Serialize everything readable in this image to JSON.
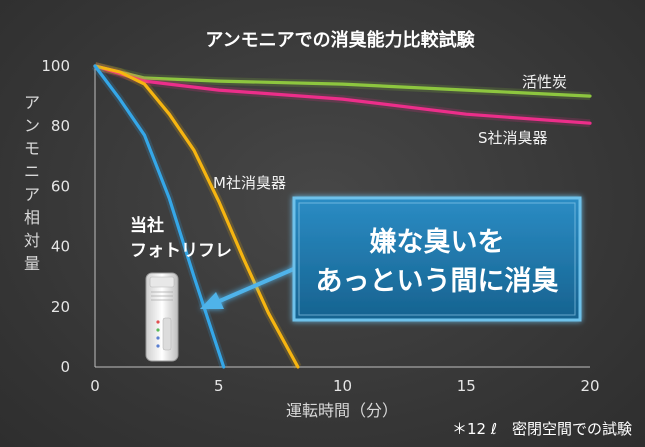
{
  "chart_data": {
    "type": "line",
    "title": "アンモニアでの消臭能力比較試験",
    "xlabel": "運転時間（分）",
    "ylabel": "アンモニア相対量",
    "xlim": [
      0,
      20
    ],
    "ylim": [
      0,
      100
    ],
    "xticks": [
      0,
      5,
      10,
      15,
      20
    ],
    "yticks": [
      0,
      20,
      40,
      60,
      80,
      100
    ],
    "grid": false,
    "series": [
      {
        "name": "活性炭",
        "color": "#8dc63f",
        "x": [
          0,
          2,
          5,
          10,
          15,
          20
        ],
        "y": [
          100,
          96,
          95,
          94,
          92,
          90
        ]
      },
      {
        "name": "S社消臭器",
        "color": "#ec2e8a",
        "x": [
          0,
          2,
          5,
          10,
          15,
          20
        ],
        "y": [
          100,
          95,
          92,
          89,
          84,
          81
        ]
      },
      {
        "name": "M社消臭器",
        "color": "#f6b511",
        "x": [
          0,
          1,
          2,
          3,
          4,
          5,
          6,
          7,
          8.2
        ],
        "y": [
          100,
          98,
          94,
          84,
          72,
          55,
          36,
          18,
          0
        ]
      },
      {
        "name": "当社 フォトリフレ",
        "color": "#35a7e8",
        "x": [
          0,
          1,
          2,
          3,
          4,
          5.2
        ],
        "y": [
          100,
          89,
          77,
          56,
          30,
          0
        ]
      }
    ],
    "series_labels": {
      "activated_carbon": "活性炭",
      "company_s": "S社消臭器",
      "company_m": "M社消臭器",
      "ours_line1": "当社",
      "ours_line2": "フォトリフレ"
    },
    "callout": {
      "line1": "嫌な臭いを",
      "line2": "あっという間に消臭"
    },
    "footnote": "＊12 ℓ　密閉空間での試験"
  },
  "ylabel_chars": [
    "ア",
    "ン",
    "モ",
    "ニ",
    "ア",
    "相",
    "対",
    "量"
  ],
  "colors": {
    "background": "#3a3a3a",
    "axis": "#bfbfbf",
    "callout_border": "#6ec1ea",
    "callout_fill": "#1e6e9e",
    "arrow": "#4fb3ea"
  }
}
